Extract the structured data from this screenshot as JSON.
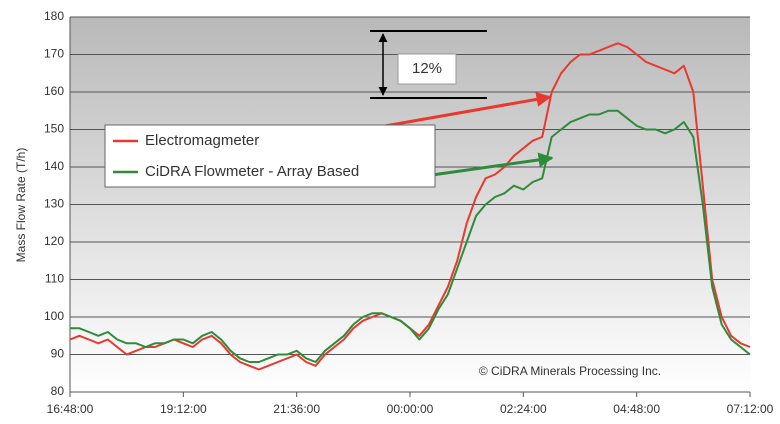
{
  "chart_data": {
    "type": "line",
    "y_label": "Mass Flow Rate (T/h)",
    "annotations": [
      "12%",
      "© CiDRA Minerals Processing Inc."
    ],
    "legend": "upper left",
    "grid": true,
    "ylim": [
      80,
      180
    ],
    "yticks": [
      80,
      90,
      100,
      110,
      120,
      130,
      140,
      150,
      160,
      170,
      180
    ],
    "xlim": [
      "16:48:00",
      "07:12:00"
    ],
    "xticks": [
      "16:48:00",
      "19:12:00",
      "21:36:00",
      "00:00:00",
      "02:24:00",
      "04:48:00",
      "07:12:00"
    ],
    "x": [
      "16:48:00",
      "17:00:00",
      "17:12:00",
      "17:24:00",
      "17:36:00",
      "17:48:00",
      "18:00:00",
      "18:12:00",
      "18:24:00",
      "18:36:00",
      "18:48:00",
      "19:00:00",
      "19:12:00",
      "19:24:00",
      "19:36:00",
      "19:48:00",
      "20:00:00",
      "20:12:00",
      "20:24:00",
      "20:36:00",
      "20:48:00",
      "21:00:00",
      "21:12:00",
      "21:24:00",
      "21:36:00",
      "21:48:00",
      "22:00:00",
      "22:12:00",
      "22:24:00",
      "22:36:00",
      "22:48:00",
      "23:00:00",
      "23:12:00",
      "23:24:00",
      "23:36:00",
      "23:48:00",
      "00:00:00",
      "00:12:00",
      "00:24:00",
      "00:36:00",
      "00:48:00",
      "01:00:00",
      "01:12:00",
      "01:24:00",
      "01:36:00",
      "01:48:00",
      "02:00:00",
      "02:12:00",
      "02:24:00",
      "02:36:00",
      "02:48:00",
      "03:00:00",
      "03:12:00",
      "03:24:00",
      "03:36:00",
      "03:48:00",
      "04:00:00",
      "04:12:00",
      "04:24:00",
      "04:36:00",
      "04:48:00",
      "05:00:00",
      "05:12:00",
      "05:24:00",
      "05:36:00",
      "05:48:00",
      "06:00:00",
      "06:12:00",
      "06:24:00",
      "06:36:00",
      "06:48:00",
      "07:00:00",
      "07:12:00"
    ],
    "series": [
      {
        "name": "Electromagmeter",
        "color": "#e8392f",
        "values": [
          94,
          95,
          94,
          93,
          94,
          92,
          90,
          91,
          92,
          92,
          93,
          94,
          93,
          92,
          94,
          95,
          93,
          90,
          88,
          87,
          86,
          87,
          88,
          89,
          90,
          88,
          87,
          90,
          92,
          94,
          97,
          99,
          100,
          101,
          100,
          99,
          97,
          95,
          98,
          103,
          108,
          115,
          125,
          132,
          137,
          138,
          140,
          143,
          145,
          147,
          148,
          160,
          165,
          168,
          170,
          170,
          171,
          172,
          173,
          172,
          170,
          168,
          167,
          166,
          165,
          167,
          160,
          135,
          110,
          100,
          95,
          93,
          92
        ]
      },
      {
        "name": "CiDRA Flowmeter - Array Based",
        "color": "#2e8b3a",
        "values": [
          97,
          97,
          96,
          95,
          96,
          94,
          93,
          93,
          92,
          93,
          93,
          94,
          94,
          93,
          95,
          96,
          94,
          91,
          89,
          88,
          88,
          89,
          90,
          90,
          91,
          89,
          88,
          91,
          93,
          95,
          98,
          100,
          101,
          101,
          100,
          99,
          97,
          94,
          97,
          102,
          106,
          113,
          120,
          127,
          130,
          132,
          133,
          135,
          134,
          136,
          137,
          148,
          150,
          152,
          153,
          154,
          154,
          155,
          155,
          153,
          151,
          150,
          150,
          149,
          150,
          152,
          148,
          130,
          108,
          98,
          94,
          92,
          90
        ]
      }
    ]
  }
}
